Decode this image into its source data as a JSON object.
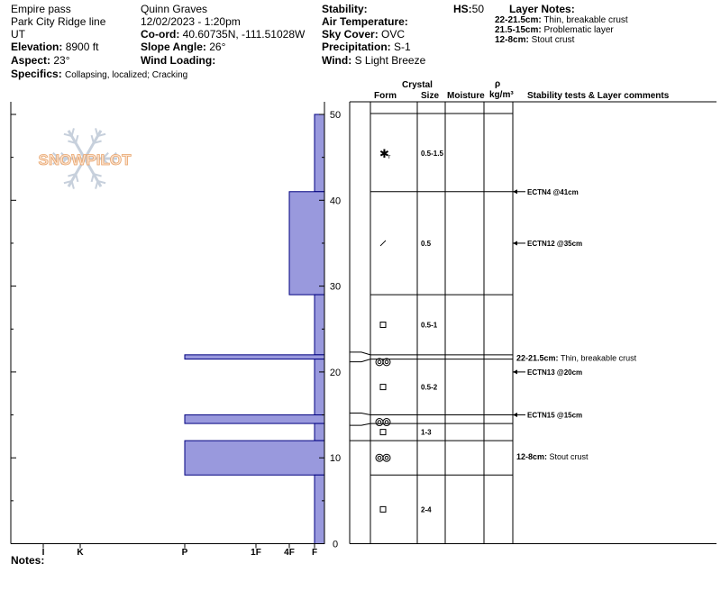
{
  "header": {
    "location": "Empire pass",
    "route": "Park City Ridge line",
    "state": "UT",
    "elevation_label": "Elevation:",
    "elevation": "8900 ft",
    "aspect_label": "Aspect:",
    "aspect": "23°",
    "specifics_label": "Specifics:",
    "specifics": "Collapsing, localized; Cracking",
    "observer": "Quinn Graves",
    "datetime": "12/02/2023 - 1:20pm",
    "coord_label": "Co-ord:",
    "coord": "40.60735N, -111.51028W",
    "slope_label": "Slope Angle:",
    "slope": "26°",
    "wind_loading_label": "Wind Loading:",
    "wind_loading": "",
    "stability_label": "Stability:",
    "stability": "",
    "air_temp_label": "Air Temperature:",
    "air_temp": "",
    "sky_label": "Sky Cover:",
    "sky": "OVC",
    "precip_label": "Precipitation:",
    "precip": "S-1",
    "wind_label": "Wind:",
    "wind": "S Light Breeze",
    "hs_label": "HS:",
    "hs": "50",
    "layer_notes_title": "Layer Notes:",
    "layer_notes": [
      {
        "range": "22-21.5cm:",
        "text": "Thin, breakable crust"
      },
      {
        "range": "21.5-15cm:",
        "text": "Problematic layer"
      },
      {
        "range": "12-8cm:",
        "text": "Stout crust"
      }
    ],
    "notes_label": "Notes:",
    "watermark": "SNOWPILOT"
  },
  "columns": {
    "crystal": "Crystal",
    "form": "Form",
    "size": "Size",
    "moisture": "Moisture",
    "rho": "ρ",
    "density": "kg/m³",
    "comments": "Stability tests & Layer comments"
  },
  "chart_data": {
    "type": "bar",
    "hardness_scale": [
      "I",
      "K",
      "P",
      "1F",
      "4F",
      "F"
    ],
    "y_ticks": [
      0,
      10,
      20,
      30,
      40,
      50
    ],
    "ylim": [
      0,
      50
    ],
    "ylabel_units": "cm",
    "hardness_profile": [
      {
        "from": 50,
        "to": 41,
        "hardness": "F"
      },
      {
        "from": 41,
        "to": 29,
        "hardness": "4F"
      },
      {
        "from": 29,
        "to": 22,
        "hardness": "F"
      },
      {
        "from": 22,
        "to": 21.5,
        "hardness": "P"
      },
      {
        "from": 21.5,
        "to": 15,
        "hardness": "F"
      },
      {
        "from": 15,
        "to": 14,
        "hardness": "P"
      },
      {
        "from": 14,
        "to": 12,
        "hardness": "F"
      },
      {
        "from": 12,
        "to": 8,
        "hardness": "P"
      },
      {
        "from": 8,
        "to": 0,
        "hardness": "F"
      }
    ],
    "layers": [
      {
        "top": 50,
        "bottom": 41,
        "form": "rimed-precip",
        "size": "0.5-1.5"
      },
      {
        "top": 41,
        "bottom": 29,
        "form": "decomposing-fragments",
        "size": "0.5"
      },
      {
        "top": 29,
        "bottom": 22,
        "form": "faceted",
        "size": "0.5-1"
      },
      {
        "top": 22,
        "bottom": 21.5,
        "form": "melt-freeze-crust",
        "size": ""
      },
      {
        "top": 21.5,
        "bottom": 15,
        "form": "faceted",
        "size": "0.5-2"
      },
      {
        "top": 15,
        "bottom": 14,
        "form": "melt-freeze-crust",
        "size": ""
      },
      {
        "top": 14,
        "bottom": 12,
        "form": "faceted",
        "size": "1-3"
      },
      {
        "top": 12,
        "bottom": 8,
        "form": "melt-freeze-crust",
        "size": ""
      },
      {
        "top": 8,
        "bottom": 0,
        "form": "faceted",
        "size": "2-4"
      }
    ],
    "tests": [
      {
        "depth": 41,
        "label": "ECTN4 @41cm"
      },
      {
        "depth": 35,
        "label": "ECTN12 @35cm"
      },
      {
        "depth": 20,
        "label": "ECTN13 @20cm"
      },
      {
        "depth": 15,
        "label": "ECTN15 @15cm"
      }
    ],
    "layer_comments": [
      {
        "depth": 21.5,
        "range": "22-21.5cm:",
        "text": "Thin, breakable crust"
      },
      {
        "depth": 10,
        "range": "12-8cm:",
        "text": "Stout crust"
      }
    ],
    "colors": {
      "bar_fill": "#9999dd",
      "bar_stroke": "#000080",
      "watermark": "#c0c8d8"
    }
  }
}
